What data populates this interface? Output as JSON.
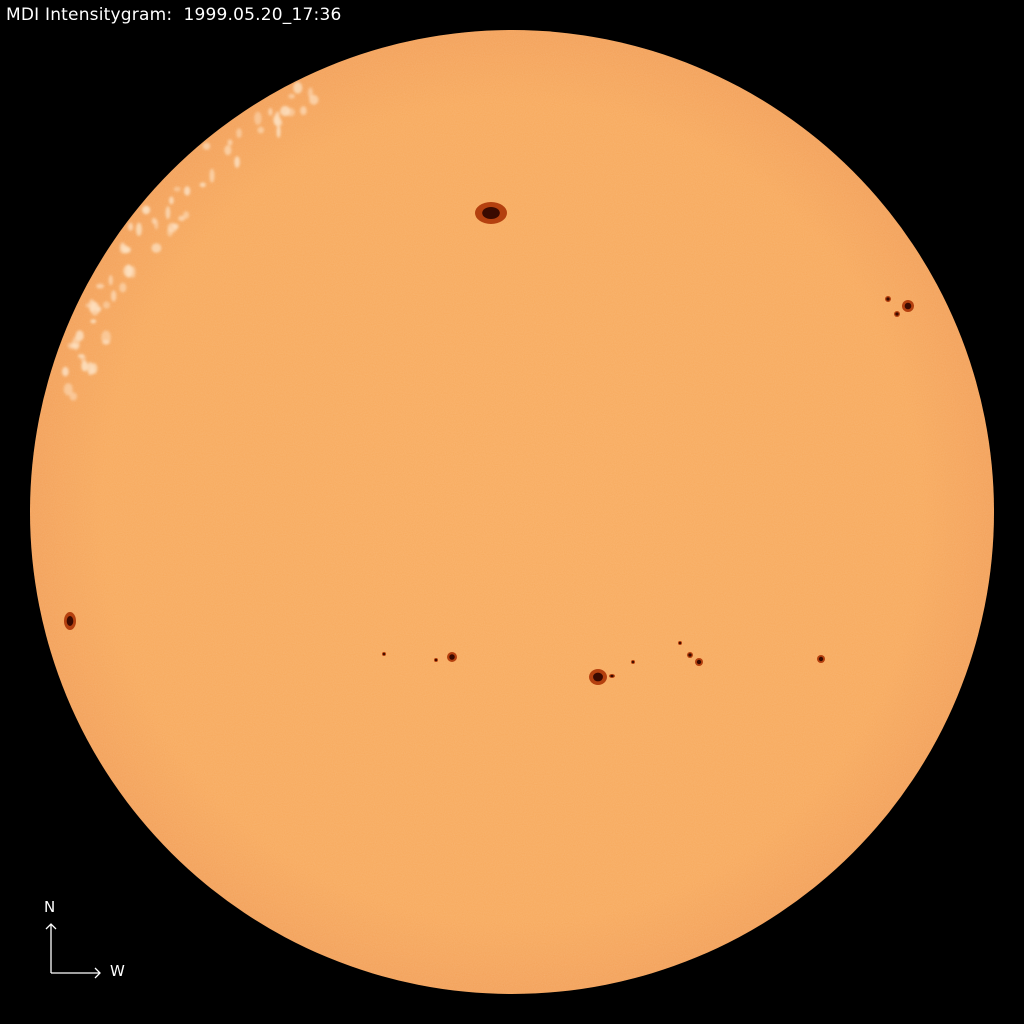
{
  "title": "MDI Intensitygram:  1999.05.20_17:36",
  "compass": {
    "north_label": "N",
    "west_label": "W"
  },
  "colors": {
    "background": "#000000",
    "disk": "#f7a95c",
    "sunspot_umbra": "#3a0a00",
    "sunspot_penumbra": "#b4400f",
    "facula": "#fde0c0"
  }
}
